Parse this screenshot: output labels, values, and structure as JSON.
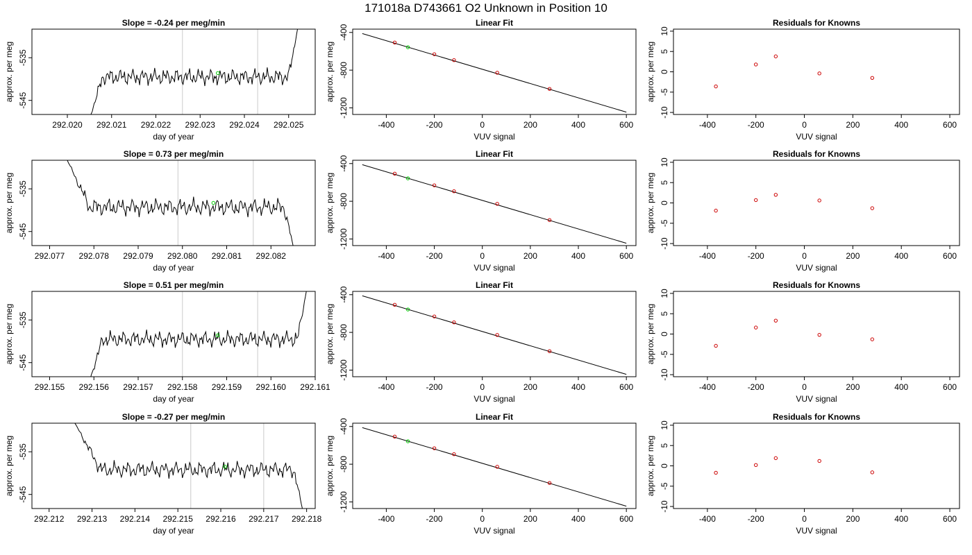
{
  "title": "171018a      D743661    O2 Unknown in Position  10",
  "colors": {
    "trace": "#000000",
    "window": "#d3d3d3",
    "unknown": "#00cc00",
    "known": "#cc0000",
    "fitline": "#000000"
  },
  "chart_data": [
    {
      "type": "line",
      "title": "Slope =  -0.24  per meg/min",
      "xlabel": "day of year",
      "ylabel": "approx. per meg",
      "xlim": [
        292.0192,
        292.0256
      ],
      "ylim": [
        -548.3,
        -528.3
      ],
      "xticks": [
        "292.020",
        "292.021",
        "292.022",
        "292.023",
        "292.024",
        "292.025"
      ],
      "yticks": [
        "-535",
        "-545"
      ],
      "start": 292.0205,
      "end": 292.0252,
      "settle": 292.0208,
      "tail_start": 292.025,
      "base": -539.5,
      "amp": 1.6,
      "rise_to": -528.3,
      "seed": 1.3,
      "windows": [
        292.0226,
        292.0243
      ],
      "marker": {
        "x": 292.0234,
        "y": -538.6
      }
    },
    {
      "type": "scatter",
      "title": "Linear Fit",
      "xlabel": "VUV signal",
      "ylabel": "approx. per meg",
      "xlim": [
        -540,
        640
      ],
      "ylim": [
        -1270,
        -365
      ],
      "xticks": [
        "-400",
        "-200",
        "0",
        "200",
        "400",
        "600"
      ],
      "yticks": [
        "-400",
        "-800",
        "-1200"
      ],
      "fit": {
        "x": [
          -500,
          600
        ],
        "y": [
          -412,
          -1245
        ]
      },
      "knowns": {
        "x": [
          -365,
          -200,
          -118,
          62,
          280
        ],
        "y": [
          -507,
          -631,
          -694,
          -827,
          -999
        ]
      },
      "unknown": {
        "x": -310,
        "y": -557
      }
    },
    {
      "type": "scatter",
      "title": "Residuals for Knowns",
      "xlabel": "VUV signal",
      "ylabel": "approx. per meg",
      "xlim": [
        -540,
        640
      ],
      "ylim": [
        -10.5,
        10.5
      ],
      "xticks": [
        "-400",
        "-200",
        "0",
        "200",
        "400",
        "600"
      ],
      "yticks": [
        "10",
        "5",
        "0",
        "-5",
        "-10"
      ],
      "knowns": {
        "x": [
          -365,
          -200,
          -118,
          62,
          280
        ],
        "y": [
          -3.6,
          1.8,
          3.8,
          -0.4,
          -1.5
        ]
      }
    },
    {
      "type": "line",
      "title": "Slope =  0.73  per meg/min",
      "xlabel": "day of year",
      "ylabel": "approx. per meg",
      "xlim": [
        292.0766,
        292.083
      ],
      "ylim": [
        -548.3,
        -528.3
      ],
      "xticks": [
        "292.077",
        "292.078",
        "292.079",
        "292.080",
        "292.081",
        "292.082"
      ],
      "yticks": [
        "-535",
        "-545"
      ],
      "start": 292.0774,
      "end": 292.0825,
      "settle": 292.0779,
      "tail_start": 292.0823,
      "base": -539.3,
      "amp": 1.7,
      "start_y": -528.3,
      "end_y": -548.3,
      "seed": 2.7,
      "windows": [
        292.0799,
        292.0816
      ],
      "marker": {
        "x": 292.0807,
        "y": -538.3
      }
    },
    {
      "type": "scatter",
      "title": "Linear Fit",
      "xlabel": "VUV signal",
      "ylabel": "approx. per meg",
      "xlim": [
        -540,
        640
      ],
      "ylim": [
        -1270,
        -365
      ],
      "xticks": [
        "-400",
        "-200",
        "0",
        "200",
        "400",
        "600"
      ],
      "yticks": [
        "-400",
        "-800",
        "-1200"
      ],
      "fit": {
        "x": [
          -500,
          600
        ],
        "y": [
          -412,
          -1245
        ]
      },
      "knowns": {
        "x": [
          -365,
          -200,
          -118,
          62,
          280
        ],
        "y": [
          -507,
          -631,
          -694,
          -827,
          -999
        ]
      },
      "unknown": {
        "x": -310,
        "y": -557
      }
    },
    {
      "type": "scatter",
      "title": "Residuals for Knowns",
      "xlabel": "VUV signal",
      "ylabel": "approx. per meg",
      "xlim": [
        -540,
        640
      ],
      "ylim": [
        -10.5,
        10.5
      ],
      "xticks": [
        "-400",
        "-200",
        "0",
        "200",
        "400",
        "600"
      ],
      "yticks": [
        "10",
        "5",
        "0",
        "-5",
        "-10"
      ],
      "knowns": {
        "x": [
          -365,
          -200,
          -118,
          62,
          280
        ],
        "y": [
          -1.9,
          0.7,
          2.0,
          0.6,
          -1.3
        ]
      }
    },
    {
      "type": "line",
      "title": "Slope =  0.51  per meg/min",
      "xlabel": "day of year",
      "ylabel": "approx. per meg",
      "xlim": [
        292.1546,
        292.161
      ],
      "ylim": [
        -548.3,
        -528.3
      ],
      "xticks": [
        "292.155",
        "292.156",
        "292.157",
        "292.158",
        "292.159",
        "292.160",
        "292.161"
      ],
      "yticks": [
        "-535",
        "-545"
      ],
      "start": 292.1559,
      "end": 292.1608,
      "settle": 292.1562,
      "tail_start": 292.1606,
      "base": -539.5,
      "amp": 1.6,
      "rise_to": -528.3,
      "seed": 4.1,
      "windows": [
        292.158,
        292.1597
      ],
      "marker": {
        "x": 292.1588,
        "y": -538.6
      }
    },
    {
      "type": "scatter",
      "title": "Linear Fit",
      "xlabel": "VUV signal",
      "ylabel": "approx. per meg",
      "xlim": [
        -540,
        640
      ],
      "ylim": [
        -1270,
        -365
      ],
      "xticks": [
        "-400",
        "-200",
        "0",
        "200",
        "400",
        "600"
      ],
      "yticks": [
        "-400",
        "-800",
        "-1200"
      ],
      "fit": {
        "x": [
          -500,
          600
        ],
        "y": [
          -412,
          -1245
        ]
      },
      "knowns": {
        "x": [
          -365,
          -200,
          -118,
          62,
          280
        ],
        "y": [
          -507,
          -631,
          -694,
          -827,
          -999
        ]
      },
      "unknown": {
        "x": -310,
        "y": -557
      }
    },
    {
      "type": "scatter",
      "title": "Residuals for Knowns",
      "xlabel": "VUV signal",
      "ylabel": "approx. per meg",
      "xlim": [
        -540,
        640
      ],
      "ylim": [
        -10.5,
        10.5
      ],
      "xticks": [
        "-400",
        "-200",
        "0",
        "200",
        "400",
        "600"
      ],
      "yticks": [
        "10",
        "5",
        "0",
        "-5",
        "-10"
      ],
      "knowns": {
        "x": [
          -365,
          -200,
          -118,
          62,
          280
        ],
        "y": [
          -2.9,
          1.6,
          3.3,
          -0.2,
          -1.3
        ]
      }
    },
    {
      "type": "line",
      "title": "Slope =  -0.27  per meg/min",
      "xlabel": "day of year",
      "ylabel": "approx. per meg",
      "xlim": [
        292.2116,
        292.2182
      ],
      "ylim": [
        -548.3,
        -528.3
      ],
      "xticks": [
        "292.212",
        "292.213",
        "292.214",
        "292.215",
        "292.216",
        "292.217",
        "292.218"
      ],
      "yticks": [
        "-535",
        "-545"
      ],
      "start": 292.2126,
      "end": 292.2179,
      "settle": 292.2132,
      "tail_start": 292.2177,
      "base": -539.2,
      "amp": 1.6,
      "start_y": -528.3,
      "end_y": -548.3,
      "seed": 5.9,
      "windows": [
        292.2153,
        292.217
      ],
      "marker": {
        "x": 292.2161,
        "y": -538.5
      }
    },
    {
      "type": "scatter",
      "title": "Linear Fit",
      "xlabel": "VUV signal",
      "ylabel": "approx. per meg",
      "xlim": [
        -540,
        640
      ],
      "ylim": [
        -1270,
        -365
      ],
      "xticks": [
        "-400",
        "-200",
        "0",
        "200",
        "400",
        "600"
      ],
      "yticks": [
        "-400",
        "-800",
        "-1200"
      ],
      "fit": {
        "x": [
          -500,
          600
        ],
        "y": [
          -412,
          -1245
        ]
      },
      "knowns": {
        "x": [
          -365,
          -200,
          -118,
          62,
          280
        ],
        "y": [
          -507,
          -631,
          -694,
          -827,
          -999
        ]
      },
      "unknown": {
        "x": -310,
        "y": -557
      }
    },
    {
      "type": "scatter",
      "title": "Residuals for Knowns",
      "xlabel": "VUV signal",
      "ylabel": "approx. per meg",
      "xlim": [
        -540,
        640
      ],
      "ylim": [
        -10.5,
        10.5
      ],
      "xticks": [
        "-400",
        "-200",
        "0",
        "200",
        "400",
        "600"
      ],
      "yticks": [
        "10",
        "5",
        "0",
        "-5",
        "-10"
      ],
      "knowns": {
        "x": [
          -365,
          -200,
          -118,
          62,
          280
        ],
        "y": [
          -1.7,
          0.2,
          1.9,
          1.2,
          -1.6
        ]
      }
    }
  ]
}
